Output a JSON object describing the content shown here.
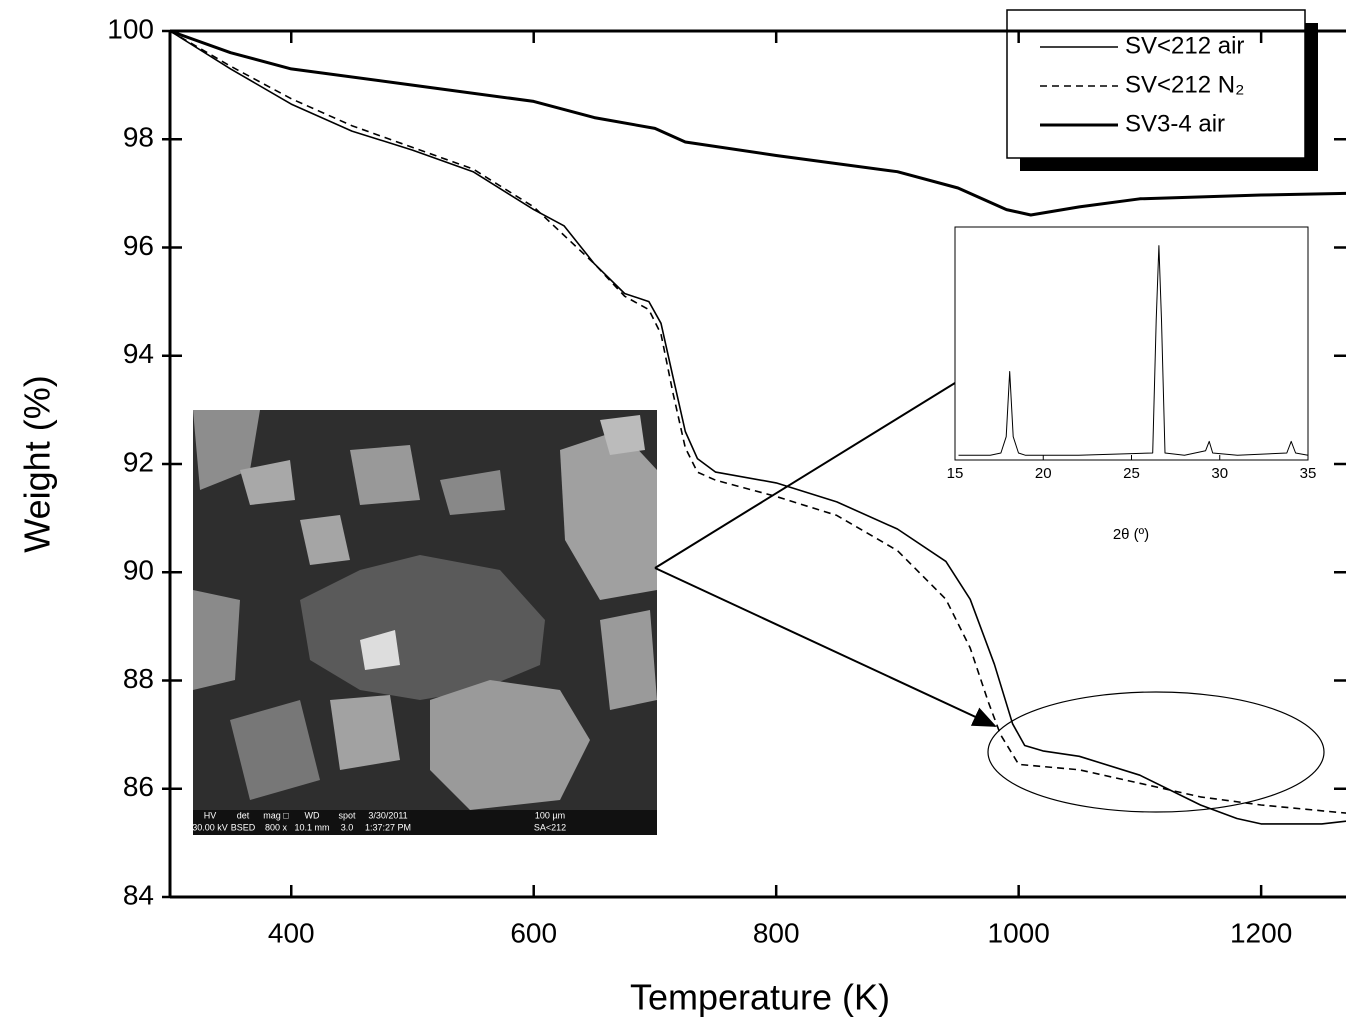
{
  "chart_data": [
    {
      "type": "line",
      "xlabel": "Temperature (K)",
      "ylabel": "Weight (%)",
      "xlim": [
        300,
        1270
      ],
      "ylim": [
        84,
        100
      ],
      "xticks": [
        400,
        600,
        800,
        1000,
        1200
      ],
      "yticks": [
        84,
        86,
        88,
        90,
        92,
        94,
        96,
        98,
        100
      ],
      "legend": "top-right",
      "series": [
        {
          "name": "SV<212 air",
          "color": "#000000",
          "style": "thin",
          "x": [
            300,
            350,
            400,
            450,
            500,
            550,
            600,
            625,
            650,
            675,
            695,
            705,
            715,
            725,
            735,
            750,
            800,
            850,
            900,
            940,
            960,
            980,
            995,
            1005,
            1020,
            1050,
            1100,
            1150,
            1180,
            1200,
            1250,
            1270
          ],
          "values": [
            100,
            99.3,
            98.65,
            98.15,
            97.8,
            97.4,
            96.7,
            96.4,
            95.7,
            95.15,
            95.0,
            94.6,
            93.6,
            92.6,
            92.1,
            91.85,
            91.65,
            91.3,
            90.8,
            90.2,
            89.5,
            88.3,
            87.2,
            86.8,
            86.7,
            86.6,
            86.25,
            85.7,
            85.45,
            85.35,
            85.35,
            85.4
          ]
        },
        {
          "name": "SV<212 N₂",
          "color": "#000000",
          "style": "dashed",
          "x": [
            300,
            350,
            400,
            450,
            500,
            550,
            600,
            650,
            675,
            695,
            705,
            715,
            725,
            735,
            750,
            800,
            850,
            900,
            940,
            960,
            975,
            985,
            1000,
            1050,
            1100,
            1150,
            1200,
            1270
          ],
          "values": [
            100,
            99.35,
            98.75,
            98.25,
            97.85,
            97.45,
            96.75,
            95.7,
            95.1,
            94.85,
            94.4,
            93.3,
            92.3,
            91.85,
            91.7,
            91.4,
            91.05,
            90.4,
            89.5,
            88.6,
            87.6,
            87.0,
            86.45,
            86.35,
            86.1,
            85.85,
            85.7,
            85.55
          ]
        },
        {
          "name": "SV3-4 air",
          "color": "#000000",
          "style": "thick",
          "x": [
            300,
            350,
            400,
            500,
            600,
            650,
            700,
            725,
            800,
            900,
            950,
            990,
            1010,
            1050,
            1100,
            1200,
            1270
          ],
          "values": [
            100,
            99.6,
            99.3,
            99.0,
            98.7,
            98.4,
            98.2,
            97.95,
            97.7,
            97.4,
            97.1,
            96.7,
            96.6,
            96.75,
            96.9,
            96.97,
            97.0
          ]
        }
      ],
      "image_caption": {
        "headers": [
          "HV",
          "det",
          "mag □",
          "WD",
          "spot",
          "3/30/2011",
          "100 µm"
        ],
        "values": [
          "30.00 kV",
          "BSED",
          "800 x",
          "10.1 mm",
          "3.0",
          "1:37:27 PM",
          "SA<212"
        ]
      }
    },
    {
      "type": "line",
      "xlabel": "2θ (º)",
      "xlim": [
        15,
        35
      ],
      "ylim": [
        0,
        100
      ],
      "xticks": [
        15,
        20,
        25,
        30,
        35
      ],
      "series": [
        {
          "color": "#000000",
          "style": "thin",
          "x": [
            15.2,
            17,
            17.6,
            17.9,
            18.1,
            18.3,
            18.6,
            19,
            22,
            26.2,
            26.4,
            26.55,
            26.7,
            26.9,
            28,
            29.2,
            29.4,
            29.6,
            31,
            33.8,
            34.05,
            34.3,
            35
          ],
          "values": [
            2,
            2,
            3,
            10,
            38,
            10,
            3,
            2,
            2,
            3,
            60,
            92,
            60,
            3,
            2,
            4,
            8,
            3,
            2,
            3,
            8,
            3,
            2
          ]
        }
      ]
    }
  ]
}
